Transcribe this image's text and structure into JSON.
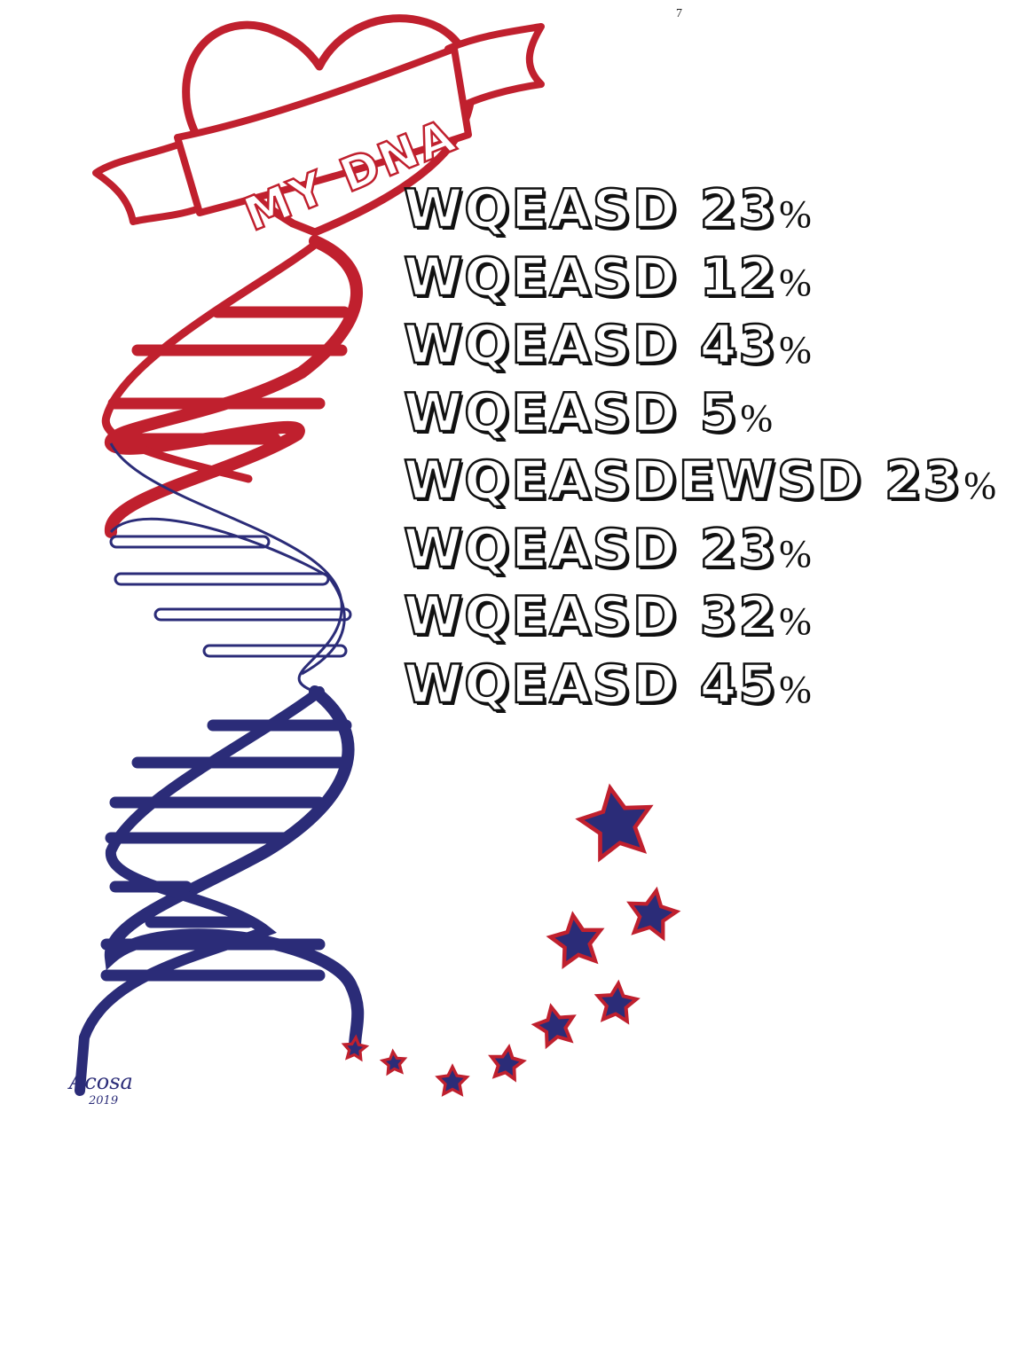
{
  "page_number": "7",
  "banner": {
    "text": "MY DNA"
  },
  "signature": {
    "name": "Acosa",
    "year": "2019"
  },
  "stats": [
    {
      "label": "WQEASD",
      "value": "23",
      "unit": "%"
    },
    {
      "label": "WQEASD",
      "value": "12",
      "unit": "%"
    },
    {
      "label": "WQEASD",
      "value": "43",
      "unit": "%"
    },
    {
      "label": "WQEASD",
      "value": "5",
      "unit": "%"
    },
    {
      "label": "WQEASDEWSD",
      "value": "23",
      "unit": "%"
    },
    {
      "label": "WQEASD",
      "value": "23",
      "unit": "%"
    },
    {
      "label": "WQEASD",
      "value": "32",
      "unit": "%"
    },
    {
      "label": "WQEASD",
      "value": "45",
      "unit": "%"
    }
  ],
  "colors": {
    "red": "#c0202e",
    "navy": "#2b2c78",
    "text": "#111111"
  },
  "icons": [
    "heart-icon",
    "ribbon-banner",
    "dna-helix",
    "star-icon"
  ]
}
